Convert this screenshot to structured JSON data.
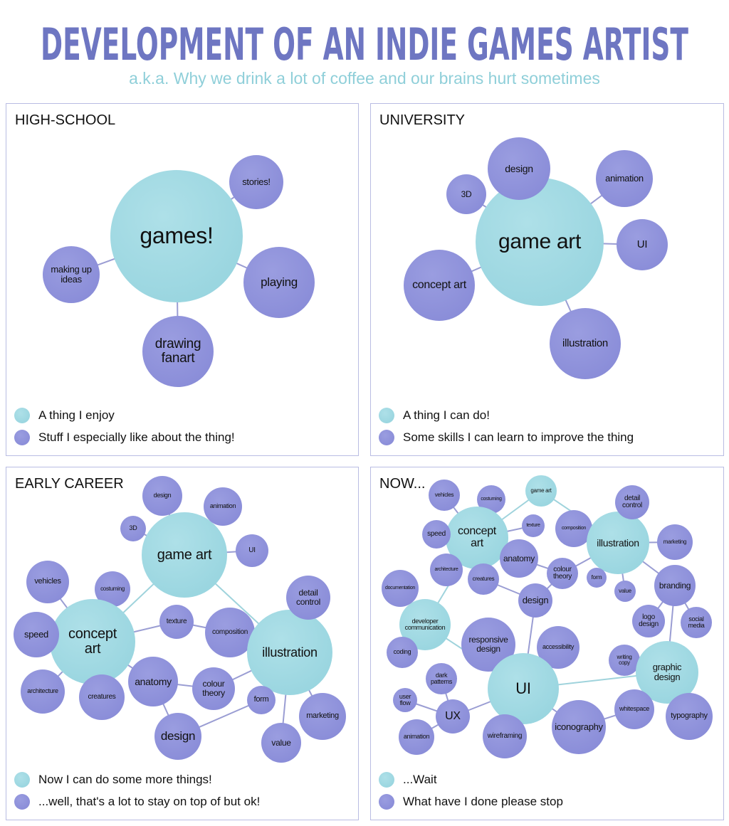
{
  "title": "DEVELOPMENT OF AN INDIE GAMES ARTIST",
  "subtitle": "a.k.a. Why we drink a lot of coffee and our brains hurt sometimes",
  "colors": {
    "enjoy": "#93d2dd",
    "skill": "#8588d6",
    "title": "#6e76c2",
    "subtitle": "#8fcfd9",
    "border": "#b9bce3"
  },
  "panels": [
    {
      "title": "HIGH-SCHOOL",
      "legend": [
        "A thing I enjoy",
        "Stuff I especially like about the thing!"
      ],
      "nodes": [
        "games!",
        "stories!",
        "making up\nideas",
        "playing",
        "drawing\nfanart"
      ]
    },
    {
      "title": "UNIVERSITY",
      "legend": [
        "A thing I can do!",
        "Some skills I can learn to improve the thing"
      ],
      "nodes": [
        "game art",
        "design",
        "3D",
        "animation",
        "UI",
        "concept art",
        "illustration"
      ]
    },
    {
      "title": "EARLY CAREER",
      "legend": [
        "Now I can do some more things!",
        "...well, that's a lot to stay on top of but ok!"
      ],
      "nodes": [
        "game art",
        "design",
        "animation",
        "3D",
        "UI",
        "vehicles",
        "costuming",
        "concept\nart",
        "speed",
        "architecture",
        "creatures",
        "texture",
        "composition",
        "illustration",
        "detail\ncontrol",
        "anatomy",
        "colour\ntheory",
        "form",
        "marketing",
        "design",
        "value"
      ]
    },
    {
      "title": "NOW...",
      "legend": [
        "...Wait",
        "What have I done please stop"
      ],
      "nodes": [
        "game art",
        "vehicles",
        "costuming",
        "concept\nart",
        "texture",
        "speed",
        "composition",
        "illustration",
        "detail\ncontrol",
        "marketing",
        "anatomy",
        "colour\ntheory",
        "architecture",
        "creatures",
        "form",
        "value",
        "branding",
        "documentation",
        "design",
        "logo\ndesign",
        "social\nmedia",
        "developer\ncommunication",
        "responsive\ndesign",
        "accessibility",
        "coding",
        "writing\ncopy",
        "graphic\ndesign",
        "UI",
        "dark\npatterns",
        "user\nflow",
        "UX",
        "whitespace",
        "typography",
        "animation",
        "wireframing",
        "iconography"
      ]
    }
  ]
}
